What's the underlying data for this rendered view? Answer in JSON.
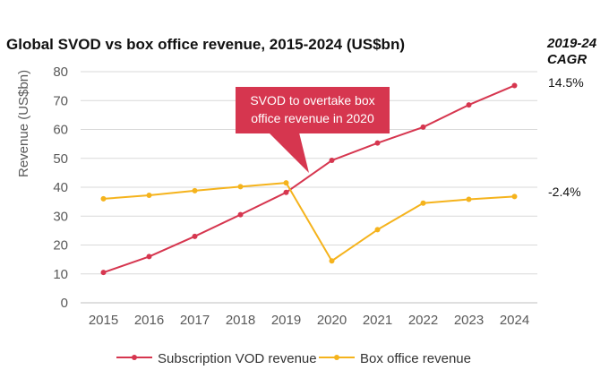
{
  "title": "Global SVOD vs box office revenue, 2015-2024 (US$bn)",
  "cagr_header": {
    "line1": "2019-24",
    "line2": "CAGR"
  },
  "callout": "SVOD to overtake box office revenue in 2020",
  "chart_data": {
    "type": "line",
    "title": "Global SVOD vs box office revenue, 2015-2024 (US$bn)",
    "xlabel": "",
    "ylabel": "Revenue (US$bn)",
    "ylim": [
      0,
      80
    ],
    "yticks": [
      0,
      10,
      20,
      30,
      40,
      50,
      60,
      70,
      80
    ],
    "grid": true,
    "legend": "bottom",
    "categories": [
      "2015",
      "2016",
      "2017",
      "2018",
      "2019",
      "2020",
      "2021",
      "2022",
      "2023",
      "2024"
    ],
    "series": [
      {
        "name": "Subscription VOD revenue",
        "color": "#d6364f",
        "cagr": "14.5%",
        "values": [
          10.5,
          16,
          23,
          30.5,
          38.2,
          49.3,
          55.3,
          60.8,
          68.5,
          75.2
        ]
      },
      {
        "name": "Box office revenue",
        "color": "#f5b31c",
        "cagr": "-2.4%",
        "values": [
          36,
          37.2,
          38.8,
          40.2,
          41.5,
          14.5,
          25.3,
          34.5,
          35.8,
          36.8
        ]
      }
    ]
  }
}
